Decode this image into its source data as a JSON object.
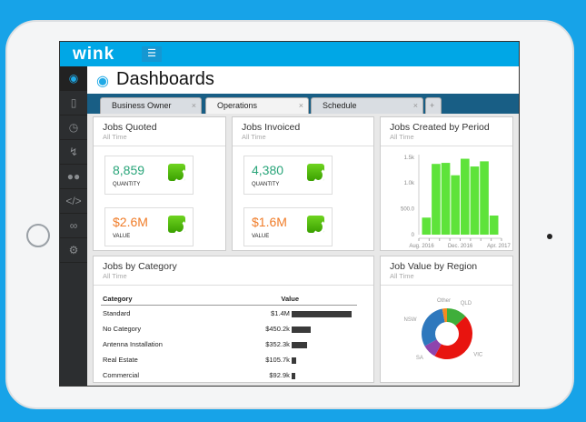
{
  "app": {
    "logo": "wink",
    "menu_icon": "hamburger-icon"
  },
  "sidebar": {
    "items": [
      {
        "icon": "dashboard-icon"
      },
      {
        "icon": "document-icon"
      },
      {
        "icon": "clock-icon"
      },
      {
        "icon": "lightning-icon"
      },
      {
        "icon": "users-icon"
      },
      {
        "icon": "code-icon"
      },
      {
        "icon": "link-icon"
      },
      {
        "icon": "gears-icon"
      }
    ]
  },
  "page": {
    "title": "Dashboards"
  },
  "tabs": [
    {
      "label": "Business Owner"
    },
    {
      "label": "Operations",
      "active": true
    },
    {
      "label": "Schedule"
    }
  ],
  "cards": {
    "jobs_quoted": {
      "title": "Jobs Quoted",
      "subtitle": "All Time",
      "quantity": "8,859",
      "quantity_label": "QUANTITY",
      "value": "$2.6M",
      "value_label": "VALUE"
    },
    "jobs_invoiced": {
      "title": "Jobs Invoiced",
      "subtitle": "All Time",
      "quantity": "4,380",
      "quantity_label": "QUANTITY",
      "value": "$1.6M",
      "value_label": "VALUE"
    },
    "jobs_by_period": {
      "title": "Jobs Created by Period",
      "subtitle": "All Time"
    },
    "jobs_by_category": {
      "title": "Jobs by Category",
      "subtitle": "All Time",
      "columns": [
        "Category",
        "Value"
      ],
      "rows": [
        {
          "category": "Standard",
          "value": "$1.4M",
          "amount": 1400
        },
        {
          "category": "No Category",
          "value": "$450.2k",
          "amount": 450.2
        },
        {
          "category": "Antenna Installation",
          "value": "$352.3k",
          "amount": 352.3
        },
        {
          "category": "Real Estate",
          "value": "$105.7k",
          "amount": 105.7
        },
        {
          "category": "Commercial",
          "value": "$92.9k",
          "amount": 92.9
        }
      ]
    },
    "job_value_by_region": {
      "title": "Job Value by Region",
      "subtitle": "All Time"
    }
  },
  "colors": {
    "quantity": "#2aa57a",
    "value": "#f07c28",
    "accent": "#00a7e6",
    "bar": "#5ee33a"
  },
  "chart_data": [
    {
      "type": "bar",
      "title": "Jobs Created by Period",
      "ylim": [
        0,
        1550
      ],
      "yticks": [
        "0",
        "500.0",
        "1.0k",
        "1.5k"
      ],
      "ytick_values": [
        0,
        500,
        1000,
        1500
      ],
      "xticks": [
        "Aug. 2016",
        "Dec. 2016",
        "Apr. 2017"
      ],
      "values": [
        330,
        1370,
        1390,
        1150,
        1470,
        1320,
        1420,
        370
      ]
    },
    {
      "type": "pie",
      "title": "Job Value by Region",
      "donut": true,
      "slices": [
        {
          "name": "QLD",
          "value": 13,
          "color": "#3fae3a"
        },
        {
          "name": "VIC",
          "value": 45,
          "color": "#e8140f"
        },
        {
          "name": "SA",
          "value": 9,
          "color": "#8e44ad"
        },
        {
          "name": "NSW",
          "value": 30,
          "color": "#2e78bd"
        },
        {
          "name": "Other",
          "value": 3,
          "color": "#f58a1f"
        }
      ]
    }
  ]
}
